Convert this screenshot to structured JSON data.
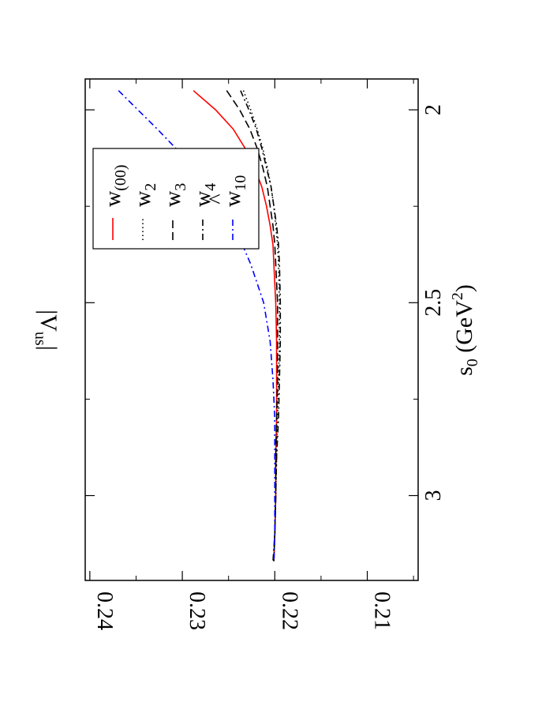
{
  "chart_data": {
    "type": "line",
    "orientation": "rotated-90-ccw",
    "xlabel": {
      "base": "s",
      "sub": "0",
      "rest": " (GeV",
      "sup": "2",
      "end": ")"
    },
    "ylabel": {
      "base": "|V",
      "sub": "us",
      "end": "|"
    },
    "xlim": [
      1.92,
      3.22
    ],
    "ylim": [
      0.2045,
      0.2405
    ],
    "xticks": [
      2,
      2.5,
      3
    ],
    "yticks": [
      0.21,
      0.22,
      0.23,
      0.24
    ],
    "xtick_labels": [
      "2",
      "2.5",
      "3"
    ],
    "ytick_labels": [
      "0.21",
      "0.22",
      "0.23",
      "0.24"
    ],
    "grid": false,
    "legend_position": "upper-right",
    "series": [
      {
        "key": "w00",
        "label_base": "w",
        "label_sub": "(00)",
        "label_hat": false,
        "color": "#ff0000",
        "dash": "",
        "x": [
          1.95,
          2.0,
          2.05,
          2.1,
          2.15,
          2.2,
          2.25,
          2.3,
          2.35,
          2.4,
          2.5,
          2.6,
          2.7,
          2.8,
          2.9,
          3.0,
          3.1,
          3.17
        ],
        "y": [
          0.2288,
          0.2264,
          0.2245,
          0.2232,
          0.2222,
          0.2214,
          0.2209,
          0.2205,
          0.2202,
          0.2201,
          0.2199,
          0.2198,
          0.2198,
          0.2198,
          0.2199,
          0.2199,
          0.22,
          0.2201
        ]
      },
      {
        "key": "w2",
        "label_base": "w",
        "label_sub": "2",
        "label_hat": false,
        "color": "#000000",
        "dash": "1.5,3.5",
        "x": [
          1.95,
          2.0,
          2.05,
          2.1,
          2.15,
          2.2,
          2.25,
          2.3,
          2.35,
          2.4,
          2.5,
          2.6,
          2.7,
          2.8,
          2.9,
          3.0,
          3.1,
          3.17
        ],
        "y": [
          0.2234,
          0.2226,
          0.2219,
          0.2213,
          0.2208,
          0.2204,
          0.2201,
          0.2199,
          0.2197,
          0.2196,
          0.2195,
          0.2195,
          0.2196,
          0.2197,
          0.2198,
          0.2199,
          0.22,
          0.2201
        ]
      },
      {
        "key": "w3",
        "label_base": "w",
        "label_sub": "3",
        "label_hat": false,
        "color": "#000000",
        "dash": "10,5",
        "x": [
          1.95,
          2.0,
          2.05,
          2.1,
          2.15,
          2.2,
          2.25,
          2.3,
          2.35,
          2.4,
          2.5,
          2.6,
          2.7,
          2.8,
          2.9,
          3.0,
          3.1,
          3.17
        ],
        "y": [
          0.2252,
          0.2238,
          0.2227,
          0.2219,
          0.2213,
          0.2208,
          0.2205,
          0.2202,
          0.22,
          0.2199,
          0.2197,
          0.2197,
          0.2197,
          0.2198,
          0.2199,
          0.2199,
          0.22,
          0.2201
        ]
      },
      {
        "key": "w4",
        "label_base": "w",
        "label_sub": "4",
        "label_hat": false,
        "color": "#000000",
        "dash": "8,4,2,4",
        "x": [
          1.95,
          2.0,
          2.05,
          2.1,
          2.15,
          2.2,
          2.25,
          2.3,
          2.35,
          2.4,
          2.5,
          2.6,
          2.7,
          2.8,
          2.9,
          3.0,
          3.1,
          3.17
        ],
        "y": [
          0.2237,
          0.2228,
          0.222,
          0.2214,
          0.2209,
          0.2204,
          0.2201,
          0.2198,
          0.2196,
          0.2195,
          0.2194,
          0.2194,
          0.2195,
          0.2196,
          0.2198,
          0.2199,
          0.22,
          0.2202
        ]
      },
      {
        "key": "w10",
        "label_base": "w",
        "label_sub": "10",
        "label_hat": true,
        "color": "#0000ff",
        "dash": "8,4,2,4",
        "x": [
          1.95,
          2.0,
          2.05,
          2.1,
          2.15,
          2.2,
          2.25,
          2.3,
          2.35,
          2.4,
          2.5,
          2.6,
          2.7,
          2.8,
          2.9,
          3.0,
          3.1,
          3.17
        ],
        "y": [
          0.2369,
          0.2348,
          0.2327,
          0.2307,
          0.2289,
          0.2272,
          0.2258,
          0.2245,
          0.2235,
          0.2226,
          0.2212,
          0.2205,
          0.2202,
          0.22,
          0.22,
          0.22,
          0.22,
          0.2201
        ]
      }
    ]
  }
}
